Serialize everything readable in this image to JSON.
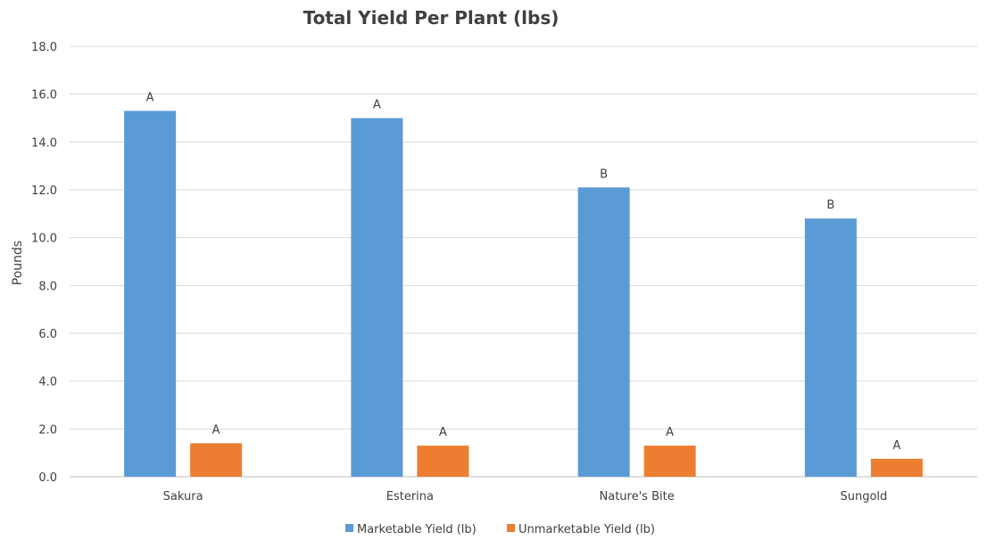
{
  "chart_data": {
    "type": "bar",
    "title": "Total Yield Per Plant (lbs)",
    "xlabel": "",
    "ylabel": "Pounds",
    "ylim": [
      0,
      18
    ],
    "yticks": [
      "0.0",
      "2.0",
      "4.0",
      "6.0",
      "8.0",
      "10.0",
      "12.0",
      "14.0",
      "16.0",
      "18.0"
    ],
    "grid": true,
    "legend_position": "bottom",
    "categories": [
      "Sakura",
      "Esterina",
      "Nature's Bite",
      "Sungold"
    ],
    "series": [
      {
        "name": "Marketable Yield (lb)",
        "color": "#5b9bd5",
        "values": [
          15.3,
          15.0,
          12.1,
          10.8
        ],
        "labels": [
          "A",
          "A",
          "B",
          "B"
        ]
      },
      {
        "name": "Unmarketable Yield (lb)",
        "color": "#ed7d31",
        "values": [
          1.4,
          1.3,
          1.3,
          0.75
        ],
        "labels": [
          "A",
          "A",
          "A",
          "A"
        ]
      }
    ]
  }
}
